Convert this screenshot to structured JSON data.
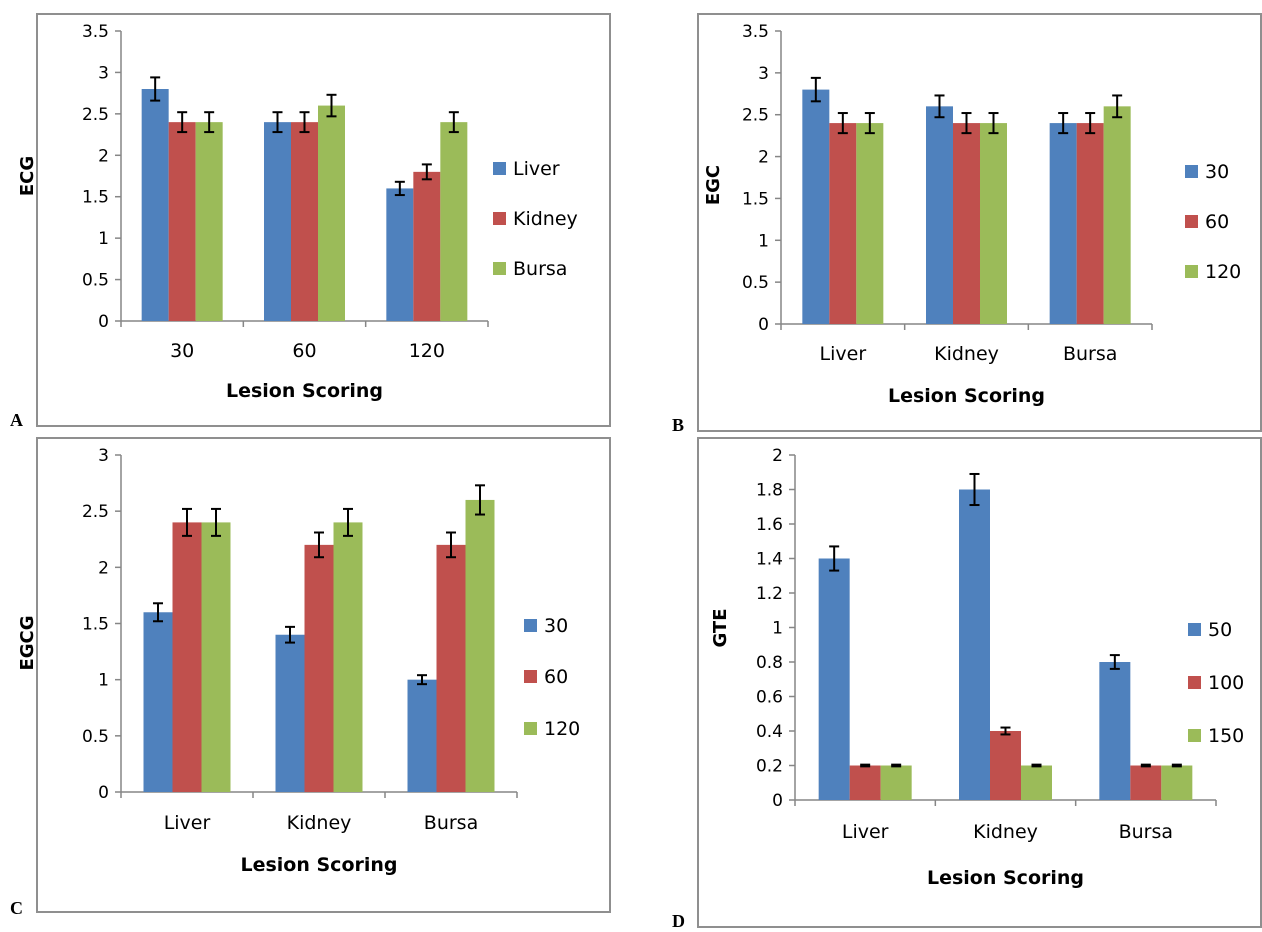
{
  "colors": {
    "blue": "#4f81bd",
    "red": "#c0504d",
    "green": "#9bbb59",
    "axis": "#868686",
    "error": "#000000"
  },
  "chart_data": [
    {
      "panel": "A",
      "type": "bar",
      "categories": [
        "30",
        "60",
        "120"
      ],
      "ylabel": "ECG",
      "xlabel": "Lesion Scoring",
      "ylim": [
        0,
        3.5
      ],
      "ticks": [
        "0",
        "0.5",
        "1",
        "1.5",
        "2",
        "2.5",
        "3",
        "3.5"
      ],
      "legend_position": "right",
      "series": [
        {
          "name": "Liver",
          "values": [
            2.8,
            2.4,
            1.6
          ],
          "errors": [
            0.14,
            0.12,
            0.08
          ]
        },
        {
          "name": "Kidney",
          "values": [
            2.4,
            2.4,
            1.8
          ],
          "errors": [
            0.12,
            0.12,
            0.09
          ]
        },
        {
          "name": "Bursa",
          "values": [
            2.4,
            2.6,
            2.4
          ],
          "errors": [
            0.12,
            0.13,
            0.12
          ]
        }
      ]
    },
    {
      "panel": "B",
      "type": "bar",
      "categories": [
        "Liver",
        "Kidney",
        "Bursa"
      ],
      "ylabel": "EGC",
      "xlabel": "Lesion Scoring",
      "ylim": [
        0,
        3.5
      ],
      "ticks": [
        "0",
        "0.5",
        "1",
        "1.5",
        "2",
        "2.5",
        "3",
        "3.5"
      ],
      "legend_position": "right",
      "series": [
        {
          "name": "30",
          "values": [
            2.8,
            2.6,
            2.4
          ],
          "errors": [
            0.14,
            0.13,
            0.12
          ]
        },
        {
          "name": "60",
          "values": [
            2.4,
            2.4,
            2.4
          ],
          "errors": [
            0.12,
            0.12,
            0.12
          ]
        },
        {
          "name": "120",
          "values": [
            2.4,
            2.4,
            2.6
          ],
          "errors": [
            0.12,
            0.12,
            0.13
          ]
        }
      ]
    },
    {
      "panel": "C",
      "type": "bar",
      "categories": [
        "Liver",
        "Kidney",
        "Bursa"
      ],
      "ylabel": "EGCG",
      "xlabel": "Lesion Scoring",
      "ylim": [
        0,
        3
      ],
      "ticks": [
        "0",
        "0.5",
        "1",
        "1.5",
        "2",
        "2.5",
        "3"
      ],
      "legend_position": "right",
      "series": [
        {
          "name": "30",
          "values": [
            1.6,
            1.4,
            1.0
          ],
          "errors": [
            0.08,
            0.07,
            0.04
          ]
        },
        {
          "name": "60",
          "values": [
            2.4,
            2.2,
            2.2
          ],
          "errors": [
            0.12,
            0.11,
            0.11
          ]
        },
        {
          "name": "120",
          "values": [
            2.4,
            2.4,
            2.6
          ],
          "errors": [
            0.12,
            0.12,
            0.13
          ]
        }
      ]
    },
    {
      "panel": "D",
      "type": "bar",
      "categories": [
        "Liver",
        "Kidney",
        "Bursa"
      ],
      "ylabel": "GTE",
      "xlabel": "Lesion Scoring",
      "ylim": [
        0,
        2
      ],
      "ticks": [
        "0",
        "0.2",
        "0.4",
        "0.6",
        "0.8",
        "1",
        "1.2",
        "1.4",
        "1.6",
        "1.8",
        "2"
      ],
      "legend_position": "right",
      "series": [
        {
          "name": "50",
          "values": [
            1.4,
            1.8,
            0.8
          ],
          "errors": [
            0.07,
            0.09,
            0.04
          ]
        },
        {
          "name": "100",
          "values": [
            0.2,
            0.4,
            0.2
          ],
          "errors": [
            0.005,
            0.02,
            0.005
          ]
        },
        {
          "name": "150",
          "values": [
            0.2,
            0.2,
            0.2
          ],
          "errors": [
            0.005,
            0.005,
            0.005
          ]
        }
      ]
    }
  ]
}
